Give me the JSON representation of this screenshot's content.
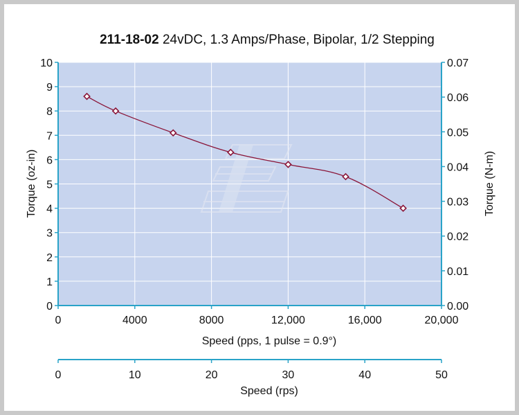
{
  "chart_data": {
    "type": "line",
    "title_bold": "211-18-02",
    "title_rest": " 24vDC, 1.3 Amps/Phase, Bipolar, 1/2 Stepping",
    "xlabel": "Speed (pps, 1 pulse = 0.9°)",
    "ylabel_left": "Torque (oz-in)",
    "ylabel_right": "Torque (N-m)",
    "xlabel_secondary": "Speed (rps)",
    "xlim": [
      0,
      20000
    ],
    "ylim": [
      0,
      10
    ],
    "ylim_right": [
      0,
      0.07
    ],
    "xlim_secondary": [
      0,
      50
    ],
    "x_ticks": [
      0,
      4000,
      8000,
      12000,
      16000,
      20000
    ],
    "x_tick_labels": [
      "0",
      "4000",
      "8000",
      "12,000",
      "16,000",
      "20,000"
    ],
    "y_ticks": [
      0,
      1,
      2,
      3,
      4,
      5,
      6,
      7,
      8,
      9,
      10
    ],
    "y_tick_labels": [
      "0",
      "1",
      "2",
      "3",
      "4",
      "5",
      "6",
      "7",
      "8",
      "9",
      "10"
    ],
    "y_right_ticks": [
      0,
      0.01,
      0.02,
      0.03,
      0.04,
      0.05,
      0.06,
      0.07
    ],
    "y_right_tick_labels": [
      "0.00",
      "0.01",
      "0.02",
      "0.03",
      "0.04",
      "0.05",
      "0.06",
      "0.07"
    ],
    "x_secondary_ticks": [
      0,
      10,
      20,
      30,
      40,
      50
    ],
    "x_secondary_tick_labels": [
      "0",
      "10",
      "20",
      "30",
      "40",
      "50"
    ],
    "grid": true,
    "series": [
      {
        "x": [
          1500,
          3000,
          6000,
          9000,
          12000,
          15000,
          18000
        ],
        "y": [
          8.6,
          8.0,
          7.1,
          6.3,
          5.8,
          5.3,
          4.0
        ]
      }
    ],
    "colors": {
      "plot_background": "#c7d4ee",
      "grid": "#ffffff",
      "axis": "#29a3c8",
      "line": "#8a1538",
      "marker_fill": "#ffffff"
    }
  }
}
